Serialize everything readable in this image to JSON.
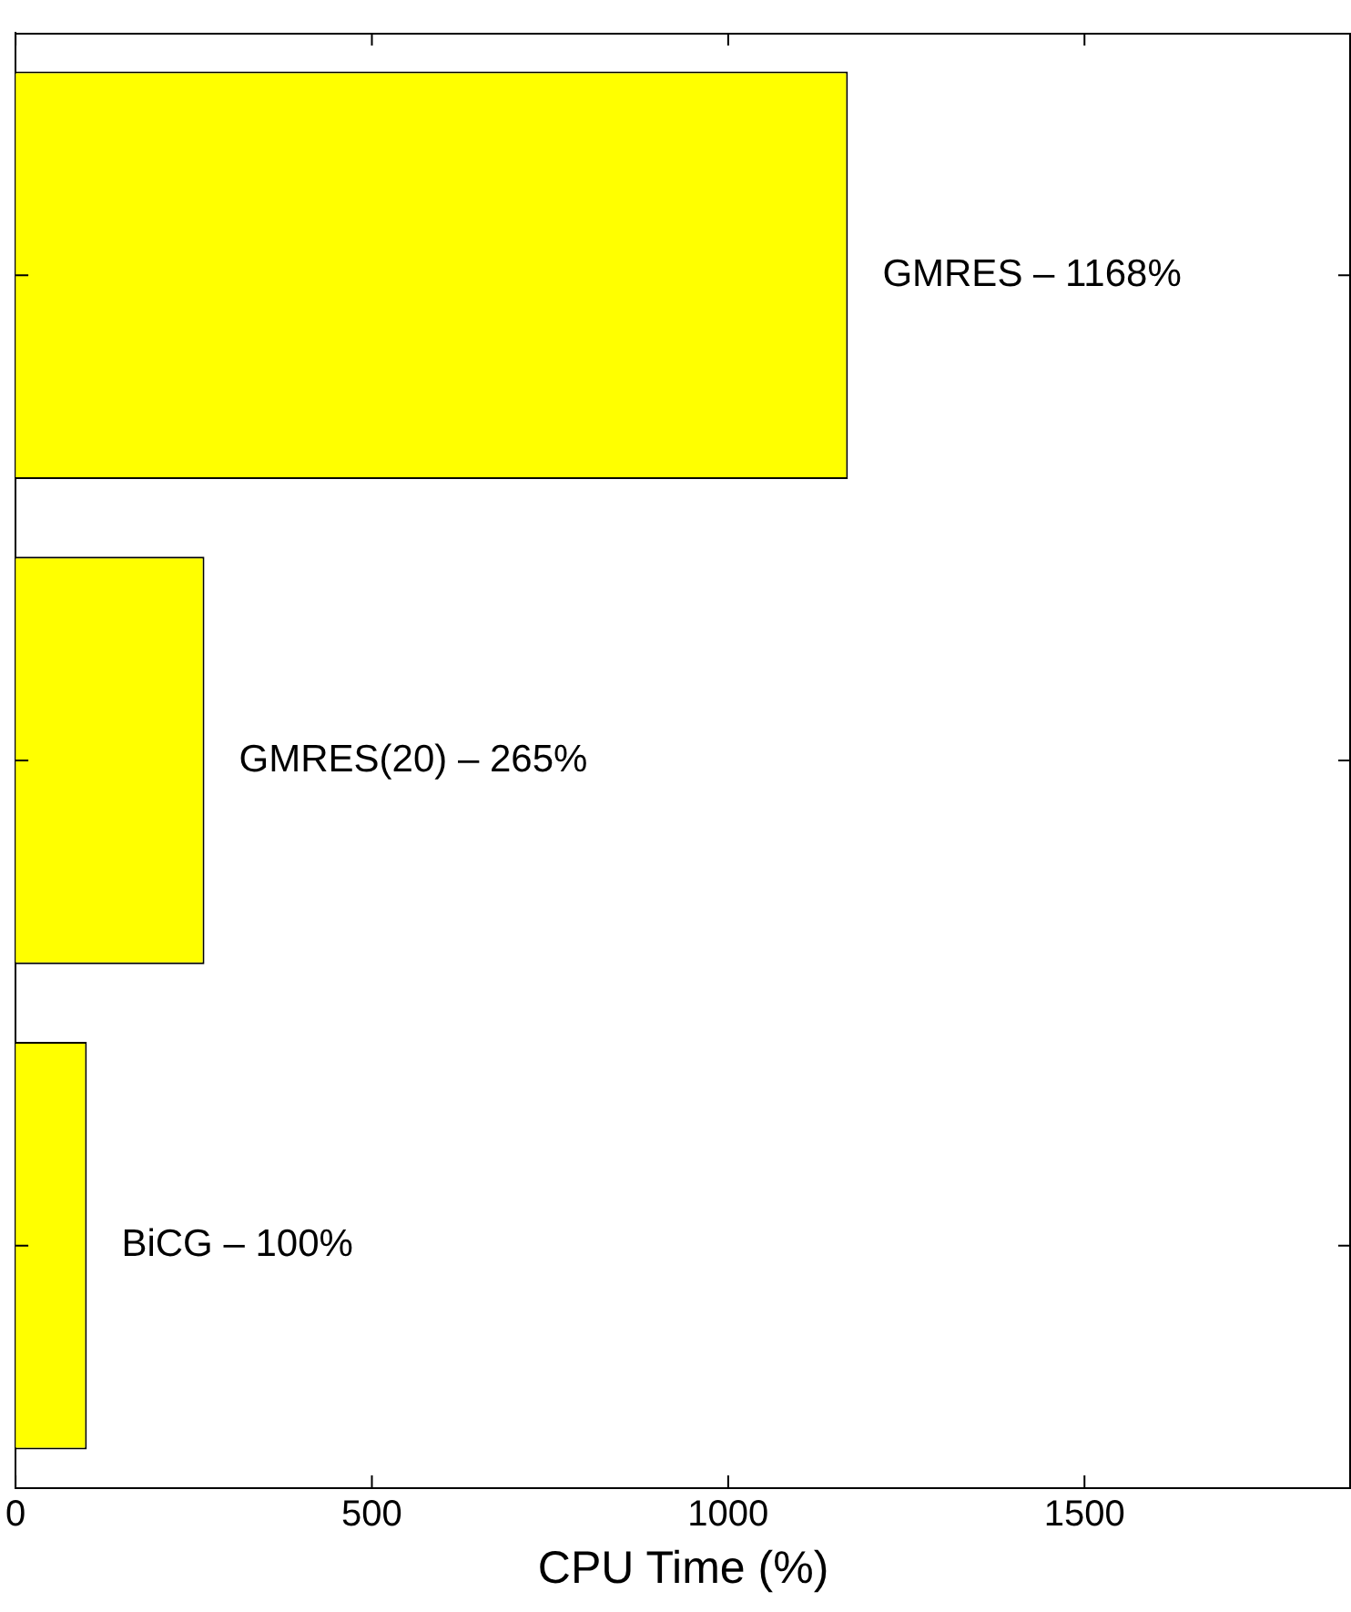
{
  "chart_data": {
    "type": "bar",
    "orientation": "horizontal",
    "xlabel": "CPU Time (%)",
    "categories": [
      null,
      null,
      null
    ],
    "values": [
      1168,
      265,
      100
    ],
    "color": "#ffff00",
    "annotations": [
      {
        "text": "GMRES – 1168%",
        "x": 1168
      },
      {
        "text": "GMRES(20) – 265%",
        "x": 265
      },
      {
        "text": "BiCG – 100%",
        "x": 100
      }
    ],
    "xlim": [
      0,
      1874
    ],
    "xticks": [
      0,
      500,
      1000,
      1500
    ],
    "grid": false
  }
}
